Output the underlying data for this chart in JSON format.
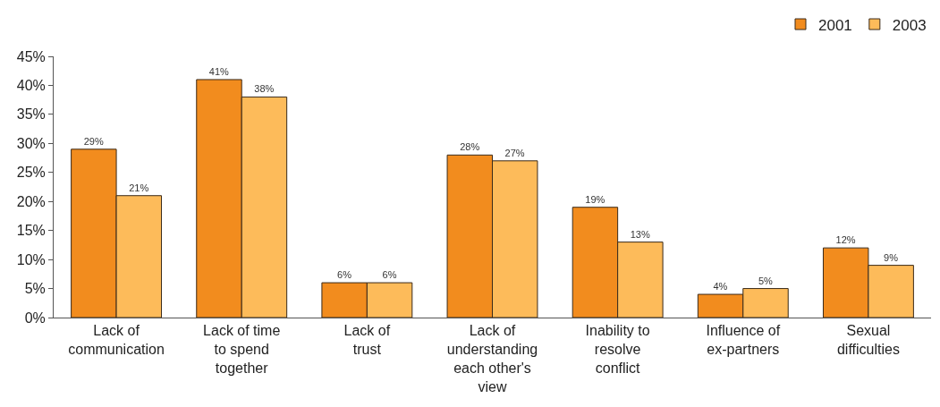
{
  "chart_data": {
    "type": "bar",
    "categories": [
      "Lack of\ncommunication",
      "Lack of time\nto spend\ntogether",
      "Lack of\ntrust",
      "Lack of\nunderstanding\neach other's\nview",
      "Inability to\nresolve\nconflict",
      "Influence of\nex-partners",
      "Sexual\ndifficulties"
    ],
    "series": [
      {
        "name": "2001",
        "color": "#f28c1e",
        "values": [
          29,
          41,
          6,
          28,
          19,
          4,
          12
        ],
        "value_labels": [
          "29%",
          "41%",
          "6%",
          "28%",
          "19%",
          "4%",
          "12%"
        ]
      },
      {
        "name": "2003",
        "color": "#fdbb5a",
        "values": [
          21,
          38,
          6,
          27,
          13,
          5,
          9
        ],
        "value_labels": [
          "21%",
          "38%",
          "6%",
          "27%",
          "13%",
          "5%",
          "9%"
        ]
      }
    ],
    "ylim": [
      0,
      45
    ],
    "yticks": [
      {
        "value": 0,
        "label": "0%"
      },
      {
        "value": 5,
        "label": "5%"
      },
      {
        "value": 10,
        "label": "10%"
      },
      {
        "value": 15,
        "label": "15%"
      },
      {
        "value": 20,
        "label": "20%"
      },
      {
        "value": 25,
        "label": "25%"
      },
      {
        "value": 30,
        "label": "30%"
      },
      {
        "value": 35,
        "label": "35%"
      },
      {
        "value": 40,
        "label": "40%"
      },
      {
        "value": 45,
        "label": "45%"
      }
    ],
    "grid": false,
    "legend": "top right"
  }
}
